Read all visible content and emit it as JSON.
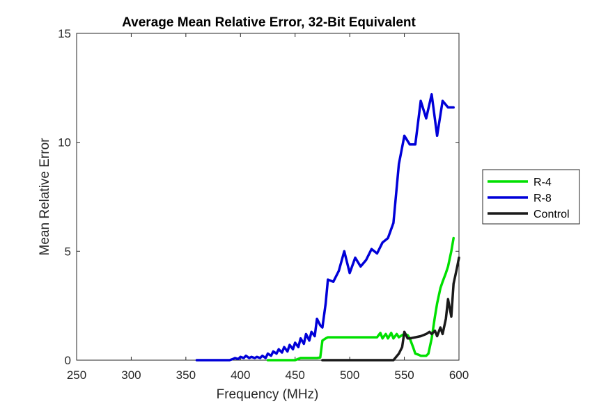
{
  "chart_data": {
    "type": "line",
    "title": "Average Mean Relative Error, 32-Bit Equivalent",
    "xlabel": "Frequency (MHz)",
    "ylabel": "Mean Relative Error",
    "xlim": [
      250,
      600
    ],
    "ylim": [
      0,
      15
    ],
    "xticks": [
      "250",
      "300",
      "350",
      "400",
      "450",
      "500",
      "550",
      "600"
    ],
    "yticks": [
      "0",
      "5",
      "10",
      "15"
    ],
    "grid": false,
    "legend_position": "outside right",
    "series": [
      {
        "name": "R-4",
        "color": "#00e000",
        "x": [
          425,
          450,
          455,
          470,
          473,
          475,
          478,
          480,
          490,
          500,
          510,
          520,
          525,
          528,
          530,
          533,
          535,
          538,
          540,
          543,
          545,
          548,
          550,
          553,
          555,
          558,
          560,
          563,
          565,
          570,
          572,
          575,
          578,
          580,
          583,
          585,
          588,
          590,
          593,
          595
        ],
        "y": [
          0.0,
          0.0,
          0.1,
          0.1,
          0.12,
          0.9,
          1.0,
          1.05,
          1.05,
          1.05,
          1.05,
          1.05,
          1.05,
          1.25,
          1.0,
          1.2,
          1.0,
          1.25,
          1.0,
          1.2,
          1.05,
          1.15,
          1.2,
          1.15,
          1.0,
          0.6,
          0.3,
          0.25,
          0.2,
          0.2,
          0.3,
          1.0,
          2.0,
          2.6,
          3.3,
          3.6,
          4.0,
          4.3,
          5.0,
          5.6
        ]
      },
      {
        "name": "R-8",
        "color": "#0000d8",
        "x": [
          360,
          380,
          390,
          393,
          395,
          398,
          400,
          403,
          405,
          408,
          410,
          413,
          415,
          418,
          420,
          423,
          425,
          428,
          430,
          433,
          435,
          438,
          440,
          443,
          445,
          448,
          450,
          453,
          455,
          458,
          460,
          463,
          465,
          468,
          470,
          473,
          475,
          478,
          480,
          485,
          490,
          495,
          500,
          505,
          510,
          515,
          520,
          525,
          530,
          535,
          540,
          545,
          550,
          555,
          560,
          565,
          570,
          575,
          580,
          585,
          590,
          595
        ],
        "y": [
          0.0,
          0.0,
          0.0,
          0.05,
          0.1,
          0.05,
          0.15,
          0.1,
          0.2,
          0.1,
          0.15,
          0.1,
          0.15,
          0.1,
          0.2,
          0.1,
          0.3,
          0.2,
          0.4,
          0.3,
          0.5,
          0.35,
          0.6,
          0.4,
          0.7,
          0.5,
          0.8,
          0.6,
          1.0,
          0.75,
          1.2,
          0.9,
          1.3,
          1.1,
          1.9,
          1.6,
          1.5,
          2.6,
          3.7,
          3.6,
          4.1,
          5.0,
          4.0,
          4.7,
          4.3,
          4.6,
          5.1,
          4.9,
          5.4,
          5.6,
          6.3,
          9.0,
          10.3,
          9.9,
          9.9,
          11.9,
          11.1,
          12.2,
          10.3,
          11.9,
          11.6,
          11.6
        ]
      },
      {
        "name": "Control",
        "color": "#1a1a1a",
        "x": [
          475,
          500,
          520,
          540,
          545,
          548,
          550,
          553,
          555,
          560,
          565,
          570,
          573,
          575,
          578,
          580,
          583,
          585,
          588,
          590,
          593,
          595,
          598,
          600
        ],
        "y": [
          0.0,
          0.0,
          0.0,
          0.0,
          0.3,
          0.6,
          1.3,
          1.0,
          1.0,
          1.05,
          1.1,
          1.2,
          1.3,
          1.2,
          1.35,
          1.1,
          1.5,
          1.2,
          1.9,
          2.8,
          2.0,
          3.5,
          4.2,
          4.7
        ]
      }
    ]
  }
}
